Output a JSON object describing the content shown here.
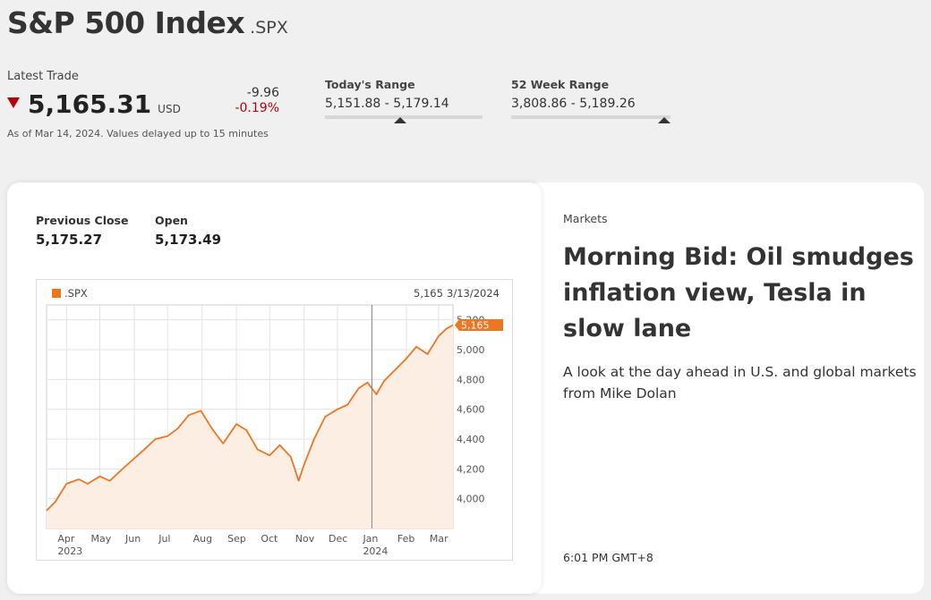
{
  "header": {
    "title": "S&P 500 Index",
    "ticker": ".SPX"
  },
  "latest_trade": {
    "label": "Latest Trade",
    "price": "5,165.31",
    "currency": "USD",
    "change": "-9.96",
    "change_pct": "-0.19%",
    "direction_icon": "triangle-down-icon",
    "down_color": "#b8000c",
    "as_of": "As of Mar 14, 2024. Values delayed up to 15 minutes"
  },
  "todays_range": {
    "label": "Today's Range",
    "value": "5,151.88 - 5,179.14",
    "position_fraction": 0.48
  },
  "week52_range": {
    "label": "52 Week Range",
    "value": "3,808.86 - 5,189.26",
    "position_fraction": 0.96
  },
  "stats": {
    "previous_close_label": "Previous Close",
    "previous_close": "5,175.27",
    "open_label": "Open",
    "open": "5,173.49"
  },
  "chart_data": {
    "type": "area",
    "series": [
      {
        "name": ".SPX",
        "color": "#ee7623"
      }
    ],
    "legend_position": "top-left",
    "hover": {
      "value": "5,165",
      "date": "3/13/2024",
      "crosshair_x": "2024-01-01"
    },
    "last_value_label": "5,165",
    "ylim": [
      3800,
      5300
    ],
    "yticks": [
      "5,200",
      "5,000",
      "4,800",
      "4,600",
      "4,400",
      "4,200",
      "4,000"
    ],
    "ytick_values": [
      5200,
      5000,
      4800,
      4600,
      4400,
      4200,
      4000
    ],
    "xticks": [
      {
        "label": "Apr",
        "sub": "2023"
      },
      {
        "label": "May",
        "sub": ""
      },
      {
        "label": "Jun",
        "sub": ""
      },
      {
        "label": "Jul",
        "sub": ""
      },
      {
        "label": "Aug",
        "sub": ""
      },
      {
        "label": "Sep",
        "sub": ""
      },
      {
        "label": "Oct",
        "sub": ""
      },
      {
        "label": "Nov",
        "sub": ""
      },
      {
        "label": "Dec",
        "sub": ""
      },
      {
        "label": "Jan",
        "sub": "2024"
      },
      {
        "label": "Feb",
        "sub": ""
      },
      {
        "label": "Mar",
        "sub": ""
      }
    ],
    "x_start": "2023-03-14",
    "x_end": "2024-03-14",
    "x": [
      "2023-03-14",
      "2023-03-22",
      "2023-04-01",
      "2023-04-12",
      "2023-04-20",
      "2023-05-01",
      "2023-05-10",
      "2023-05-20",
      "2023-06-01",
      "2023-06-10",
      "2023-06-20",
      "2023-07-01",
      "2023-07-10",
      "2023-07-20",
      "2023-07-31",
      "2023-08-10",
      "2023-08-20",
      "2023-09-01",
      "2023-09-10",
      "2023-09-20",
      "2023-10-01",
      "2023-10-10",
      "2023-10-20",
      "2023-10-27",
      "2023-11-01",
      "2023-11-10",
      "2023-11-20",
      "2023-12-01",
      "2023-12-10",
      "2023-12-20",
      "2023-12-28",
      "2024-01-05",
      "2024-01-12",
      "2024-01-20",
      "2024-02-01",
      "2024-02-10",
      "2024-02-20",
      "2024-03-01",
      "2024-03-08",
      "2024-03-14"
    ],
    "values": [
      3920,
      3980,
      4100,
      4130,
      4100,
      4150,
      4120,
      4190,
      4270,
      4330,
      4400,
      4420,
      4470,
      4560,
      4590,
      4470,
      4370,
      4500,
      4460,
      4330,
      4290,
      4360,
      4280,
      4120,
      4230,
      4400,
      4550,
      4600,
      4630,
      4740,
      4780,
      4700,
      4790,
      4850,
      4940,
      5020,
      4970,
      5090,
      5140,
      5165
    ]
  },
  "article": {
    "section": "Markets",
    "headline": "Morning Bid: Oil smudges inflation view, Tesla in slow lane",
    "summary": "A look at the day ahead in U.S. and global markets from Mike Dolan",
    "time": "6:01 PM GMT+8"
  }
}
